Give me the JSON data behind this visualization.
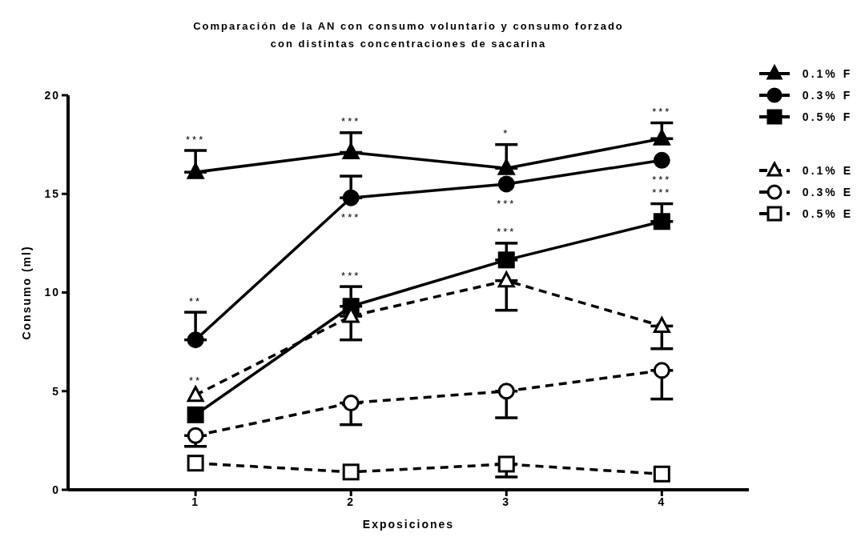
{
  "chart_data": {
    "type": "line",
    "title": "Comparación de la AN con consumo voluntario y consumo forzado con distintas concentraciones de sacarina",
    "xlabel": "Exposiciones",
    "ylabel": "Consumo (ml)",
    "x": [
      1,
      2,
      3,
      4
    ],
    "xlim": [
      0.18,
      4.56
    ],
    "xticks": [
      1,
      2,
      3,
      4
    ],
    "ylim": [
      0,
      20
    ],
    "yticks": [
      0,
      5,
      10,
      15,
      20
    ],
    "grid": false,
    "legend": "top right",
    "series": [
      {
        "name": "0.1% F",
        "color": "#000000",
        "marker": "triangle",
        "line_style": "solid",
        "values": [
          16.1,
          17.1,
          16.3,
          17.8
        ],
        "errors": [
          [
            16.1,
            17.2
          ],
          [
            17.1,
            18.1
          ],
          [
            16.3,
            17.5
          ],
          [
            17.8,
            18.6
          ]
        ]
      },
      {
        "name": "0.3% F",
        "color": "#000000",
        "marker": "circle",
        "line_style": "solid",
        "values": [
          7.6,
          14.8,
          15.5,
          16.7
        ],
        "errors": [
          [
            7.6,
            9.0
          ],
          [
            14.8,
            15.9
          ],
          null,
          null
        ]
      },
      {
        "name": "0.5% F",
        "color": "#000000",
        "marker": "square",
        "line_style": "solid",
        "values": [
          3.8,
          9.3,
          11.65,
          13.6
        ],
        "errors": [
          null,
          [
            9.3,
            10.3
          ],
          [
            11.65,
            12.5
          ],
          [
            13.6,
            14.5
          ]
        ]
      },
      {
        "name": "0.1% E",
        "color": "#000000",
        "marker": "triangle",
        "line_style": "dashed",
        "values": [
          4.8,
          8.8,
          10.6,
          8.3
        ],
        "errors": [
          null,
          [
            7.6,
            8.8
          ],
          [
            9.1,
            10.6
          ],
          [
            7.15,
            8.3
          ]
        ]
      },
      {
        "name": "0.3% E",
        "color": "#000000",
        "marker": "circle",
        "line_style": "dashed",
        "values": [
          2.75,
          4.4,
          5.0,
          6.05
        ],
        "errors": [
          [
            2.2,
            2.75
          ],
          [
            3.3,
            4.4
          ],
          [
            3.65,
            5.0
          ],
          [
            4.6,
            6.05
          ]
        ]
      },
      {
        "name": "0.5% E",
        "color": "#000000",
        "marker": "square",
        "line_style": "dashed",
        "values": [
          1.35,
          0.9,
          1.3,
          0.8
        ],
        "errors": [
          null,
          null,
          [
            0.65,
            1.3
          ],
          null
        ]
      }
    ],
    "annotations": [
      {
        "text": "***",
        "x": 1,
        "y": 17.2
      },
      {
        "text": "**",
        "x": 1,
        "y": 9.0
      },
      {
        "text": "**",
        "x": 1,
        "y": 4.8
      },
      {
        "text": "***",
        "x": 2,
        "y": 18.1
      },
      {
        "text": "***",
        "x": 2,
        "y": 14.8
      },
      {
        "text": "***",
        "x": 2,
        "y": 10.3
      },
      {
        "text": "*",
        "x": 3,
        "y": 17.5
      },
      {
        "text": "***",
        "x": 3,
        "y": 15.5
      },
      {
        "text": "***",
        "x": 3,
        "y": 12.5
      },
      {
        "text": "***",
        "x": 4,
        "y": 18.6
      },
      {
        "text": "***",
        "x": 4,
        "y": 16.7
      },
      {
        "text": "***",
        "x": 4,
        "y": 14.5
      }
    ]
  }
}
